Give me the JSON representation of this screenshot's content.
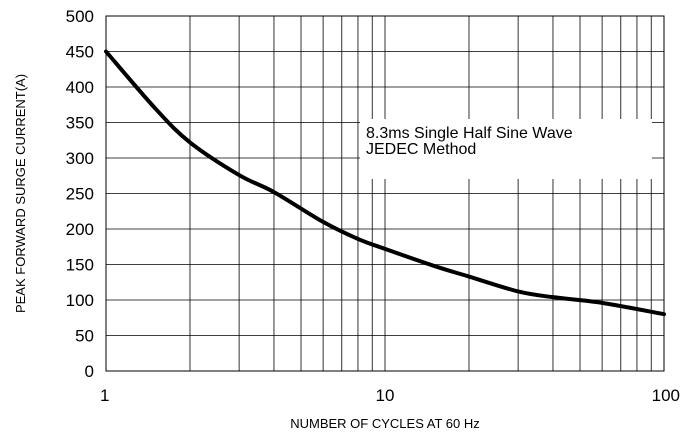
{
  "chart_data": {
    "type": "line",
    "title": "",
    "xlabel": "NUMBER OF CYCLES AT 60 Hz",
    "ylabel": "PEAK FORWARD SURGE CURRENT(A)",
    "xscale": "log",
    "xlim": [
      1,
      100
    ],
    "ylim": [
      0,
      500
    ],
    "grid": true,
    "x_ticks": [
      1,
      10,
      100
    ],
    "x_tick_labels": [
      "1",
      "10",
      "100"
    ],
    "y_ticks": [
      0,
      50,
      100,
      150,
      200,
      250,
      300,
      350,
      400,
      450,
      500
    ],
    "y_tick_labels": [
      "0",
      "50",
      "100",
      "150",
      "200",
      "250",
      "300",
      "350",
      "400",
      "450",
      "500"
    ],
    "annotation": {
      "line1": "8.3ms Single Half Sine Wave",
      "line2": "JEDEC Method"
    },
    "series": [
      {
        "color": "#000000",
        "x": [
          1,
          1.5,
          2,
          3,
          4,
          6,
          8,
          10,
          15,
          20,
          30,
          40,
          60,
          100
        ],
        "y": [
          450,
          370,
          322,
          276,
          252,
          210,
          186,
          172,
          148,
          133,
          112,
          104,
          96,
          80
        ]
      }
    ]
  }
}
